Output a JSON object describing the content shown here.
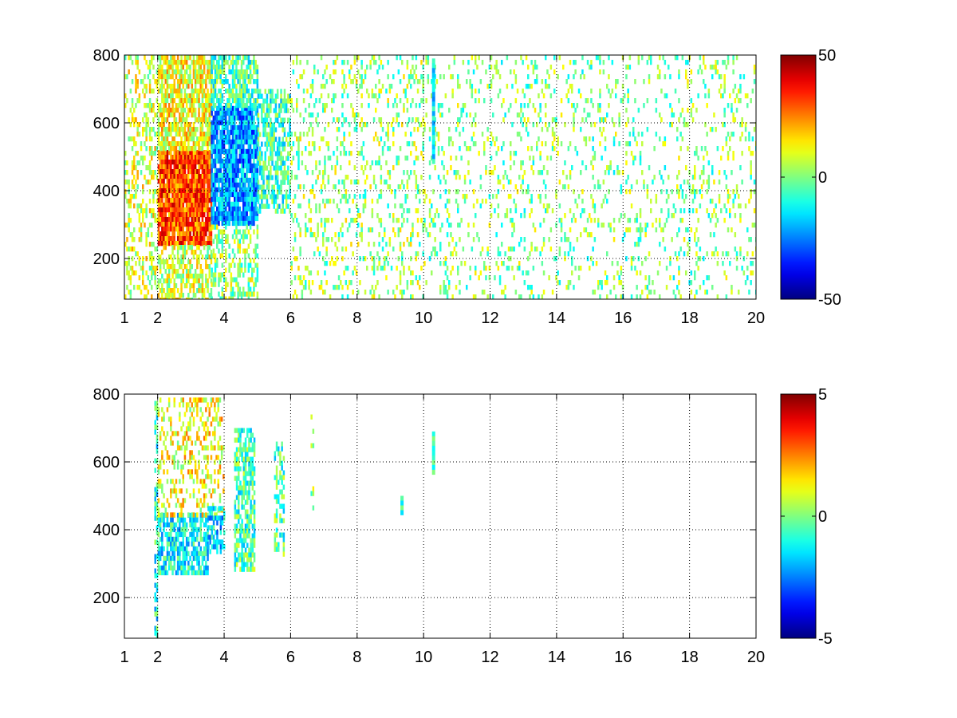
{
  "chart_data": [
    {
      "type": "heatmap",
      "title": "",
      "xlabel": "",
      "ylabel": "",
      "xlim": [
        1,
        20
      ],
      "ylim": [
        80,
        800
      ],
      "xticks": [
        1,
        2,
        4,
        6,
        8,
        10,
        12,
        14,
        16,
        18,
        20
      ],
      "yticks": [
        200,
        400,
        600,
        800
      ],
      "grid": true,
      "colormap": "jet",
      "colorbar": {
        "range": [
          -50,
          50
        ],
        "ticks": [
          -50,
          0,
          50
        ],
        "placement": "right"
      },
      "blobs": [
        {
          "x": [
            1.0,
            2.0
          ],
          "y": [
            80,
            800
          ],
          "v": 8,
          "density": 0.35
        },
        {
          "x": [
            2.0,
            3.6
          ],
          "y": [
            240,
            520
          ],
          "v": 30,
          "density": 0.95
        },
        {
          "x": [
            2.0,
            3.6
          ],
          "y": [
            520,
            800
          ],
          "v": 12,
          "density": 0.75
        },
        {
          "x": [
            2.0,
            3.6
          ],
          "y": [
            80,
            240
          ],
          "v": 8,
          "density": 0.6
        },
        {
          "x": [
            3.6,
            5.0
          ],
          "y": [
            300,
            650
          ],
          "v": -22,
          "density": 0.9
        },
        {
          "x": [
            3.6,
            5.0
          ],
          "y": [
            650,
            800
          ],
          "v": -5,
          "density": 0.7
        },
        {
          "x": [
            3.6,
            5.0
          ],
          "y": [
            80,
            300
          ],
          "v": 2,
          "density": 0.45
        },
        {
          "x": [
            5.0,
            6.0
          ],
          "y": [
            340,
            700
          ],
          "v": -6,
          "density": 0.6
        },
        {
          "x": [
            6.0,
            10.0
          ],
          "y": [
            80,
            800
          ],
          "v": 2,
          "density": 0.2
        },
        {
          "x": [
            10.0,
            20.0
          ],
          "y": [
            80,
            800
          ],
          "v": 0,
          "density": 0.14
        }
      ],
      "stripes": [
        {
          "x": 10.3,
          "y": [
            480,
            790
          ],
          "v": -15
        }
      ]
    },
    {
      "type": "heatmap",
      "title": "",
      "xlabel": "",
      "ylabel": "",
      "xlim": [
        1,
        20
      ],
      "ylim": [
        80,
        800
      ],
      "xticks": [
        1,
        2,
        4,
        6,
        8,
        10,
        12,
        14,
        16,
        18,
        20
      ],
      "yticks": [
        200,
        400,
        600,
        800
      ],
      "grid": true,
      "colormap": "jet",
      "colorbar": {
        "range": [
          -5,
          5
        ],
        "ticks": [
          -5,
          0,
          5
        ],
        "placement": "right"
      },
      "blobs": [
        {
          "x": [
            1.9,
            2.0
          ],
          "y": [
            80,
            780
          ],
          "v": -1,
          "density": 0.6
        },
        {
          "x": [
            2.0,
            3.5
          ],
          "y": [
            280,
            450
          ],
          "v": -1.2,
          "density": 0.7
        },
        {
          "x": [
            2.0,
            4.0
          ],
          "y": [
            450,
            790
          ],
          "v": 1.2,
          "density": 0.35
        },
        {
          "x": [
            3.5,
            4.0
          ],
          "y": [
            330,
            470
          ],
          "v": -1.5,
          "density": 0.5
        },
        {
          "x": [
            4.3,
            4.9
          ],
          "y": [
            290,
            700
          ],
          "v": -0.5,
          "density": 0.65
        },
        {
          "x": [
            5.5,
            5.8
          ],
          "y": [
            330,
            660
          ],
          "v": -0.5,
          "density": 0.45
        },
        {
          "x": [
            6.6,
            6.7
          ],
          "y": [
            450,
            740
          ],
          "v": 0.6,
          "density": 0.25
        }
      ],
      "stripes": [
        {
          "x": 10.3,
          "y": [
            565,
            690
          ],
          "v": -0.8
        },
        {
          "x": 9.35,
          "y": [
            455,
            500
          ],
          "v": -0.8
        }
      ]
    }
  ]
}
